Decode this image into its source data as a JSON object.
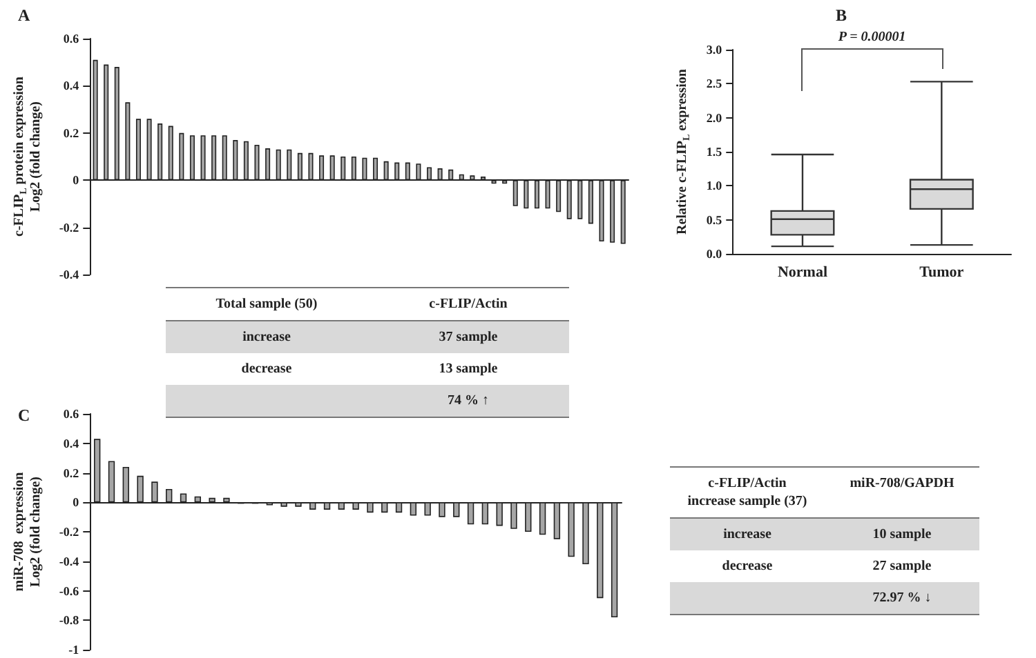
{
  "chart_data": [
    {
      "type": "bar",
      "title": "A",
      "ylabel": "c-FLIP$_{L}$ protein expression\nLog2 (fold change)",
      "tick_labels": "y",
      "color": "#a6a6a6",
      "ylim": [
        -0.4,
        0.6
      ],
      "yticks": [
        -0.4,
        -0.2,
        0,
        0.2,
        0.4,
        0.6
      ],
      "categories": [
        null,
        null,
        null,
        null,
        null,
        null,
        null,
        null,
        null,
        null,
        null,
        null,
        null,
        null,
        null,
        null,
        null,
        null,
        null,
        null,
        null,
        null,
        null,
        null,
        null,
        null,
        null,
        null,
        null,
        null,
        null,
        null,
        null,
        null,
        null,
        null,
        null,
        null,
        null,
        null,
        null,
        null,
        null,
        null,
        null,
        null,
        null,
        null,
        null,
        null
      ],
      "values": [
        0.51,
        0.49,
        0.48,
        0.33,
        0.26,
        0.26,
        0.24,
        0.23,
        0.2,
        0.19,
        0.19,
        0.19,
        0.19,
        0.17,
        0.165,
        0.15,
        0.135,
        0.13,
        0.13,
        0.115,
        0.115,
        0.105,
        0.105,
        0.1,
        0.1,
        0.095,
        0.095,
        0.08,
        0.075,
        0.075,
        0.07,
        0.055,
        0.05,
        0.045,
        0.025,
        0.02,
        0.015,
        -0.015,
        -0.015,
        -0.11,
        -0.12,
        -0.12,
        -0.12,
        -0.135,
        -0.165,
        -0.165,
        -0.185,
        -0.26,
        -0.265,
        -0.27
      ]
    },
    {
      "type": "box",
      "title": "B",
      "ylabel": "Relative c-FLIP$_{L}$ expression",
      "grid": false,
      "color": "#d9d9d9",
      "categories": [
        "Normal",
        "Tumor"
      ],
      "ylim": [
        0,
        3
      ],
      "yticks": [
        {
          "value": 0,
          "label": "0.0"
        },
        {
          "value": 0.5,
          "label": "0.5"
        },
        {
          "value": 1,
          "label": "1.0"
        },
        {
          "value": 1.5,
          "label": "1.5"
        },
        {
          "value": 2,
          "label": "2.0"
        },
        {
          "value": 2.5,
          "label": "2.5"
        },
        {
          "value": 3,
          "label": "3.0"
        }
      ],
      "boxes": [
        {
          "low": 0.11,
          "q1": 0.28,
          "median": 0.51,
          "q3": 0.63,
          "high": 1.46
        },
        {
          "low": 0.13,
          "q1": 0.66,
          "median": 0.95,
          "q3": 1.09,
          "high": 2.53
        }
      ],
      "annotations": [
        "P = 0.00001"
      ]
    },
    {
      "type": "other",
      "annotations": [
        "Total sample (50)",
        "c-FLIP/Actin",
        "increase",
        "37 sample",
        "decrease",
        "13 sample",
        "74 % ↑"
      ]
    },
    {
      "type": "bar",
      "title": "C",
      "ylabel": "miR-708  expression\nLog2 (fold change)",
      "tick_labels": "y",
      "color": "#a6a6a6",
      "ylim": [
        -1,
        0.6
      ],
      "yticks": [
        -1,
        -0.8,
        -0.6,
        -0.4,
        -0.2,
        0,
        0.2,
        0.4,
        0.6
      ],
      "categories": [
        null,
        null,
        null,
        null,
        null,
        null,
        null,
        null,
        null,
        null,
        null,
        null,
        null,
        null,
        null,
        null,
        null,
        null,
        null,
        null,
        null,
        null,
        null,
        null,
        null,
        null,
        null,
        null,
        null,
        null,
        null,
        null,
        null,
        null,
        null,
        null,
        null
      ],
      "values": [
        0.43,
        0.28,
        0.24,
        0.18,
        0.14,
        0.09,
        0.06,
        0.04,
        0.03,
        0.03,
        -0.01,
        -0.01,
        -0.02,
        -0.03,
        -0.03,
        -0.05,
        -0.05,
        -0.05,
        -0.05,
        -0.07,
        -0.07,
        -0.07,
        -0.09,
        -0.09,
        -0.1,
        -0.1,
        -0.15,
        -0.15,
        -0.16,
        -0.18,
        -0.2,
        -0.22,
        -0.25,
        -0.37,
        -0.42,
        -0.65,
        -0.78
      ]
    },
    {
      "type": "other",
      "annotations": [
        "c-FLIP/Actin\nincrease sample (37)",
        "miR-708/GAPDH",
        "increase",
        "10 sample",
        "decrease",
        "27 sample",
        "72.97 % ↓"
      ]
    }
  ]
}
